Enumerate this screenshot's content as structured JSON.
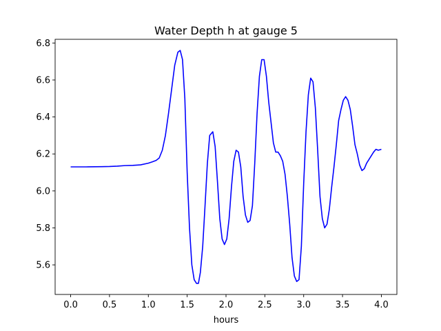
{
  "chart_data": {
    "type": "line",
    "title": "Water Depth h at gauge 5",
    "xlabel": "hours",
    "ylabel": "",
    "xlim": [
      -0.2,
      4.2
    ],
    "ylim": [
      5.44,
      6.82
    ],
    "xticks": [
      0.0,
      0.5,
      1.0,
      1.5,
      2.0,
      2.5,
      3.0,
      3.5,
      4.0
    ],
    "xtick_labels": [
      "0.0",
      "0.5",
      "1.0",
      "1.5",
      "2.0",
      "2.5",
      "3.0",
      "3.5",
      "4.0"
    ],
    "yticks": [
      5.6,
      5.8,
      6.0,
      6.2,
      6.4,
      6.6,
      6.8
    ],
    "ytick_labels": [
      "5.6",
      "5.8",
      "6.0",
      "6.2",
      "6.4",
      "6.6",
      "6.8"
    ],
    "grid": false,
    "series": [
      {
        "color": "#0000ff",
        "x": [
          0.0,
          0.2,
          0.4,
          0.5,
          0.6,
          0.7,
          0.8,
          0.9,
          1.0,
          1.05,
          1.1,
          1.14,
          1.18,
          1.22,
          1.26,
          1.3,
          1.34,
          1.38,
          1.41,
          1.44,
          1.47,
          1.5,
          1.53,
          1.56,
          1.59,
          1.62,
          1.645,
          1.67,
          1.7,
          1.73,
          1.76,
          1.79,
          1.83,
          1.86,
          1.89,
          1.92,
          1.95,
          1.98,
          2.01,
          2.04,
          2.07,
          2.1,
          2.13,
          2.16,
          2.19,
          2.22,
          2.25,
          2.28,
          2.31,
          2.34,
          2.37,
          2.4,
          2.43,
          2.46,
          2.49,
          2.52,
          2.55,
          2.58,
          2.61,
          2.64,
          2.67,
          2.7,
          2.73,
          2.76,
          2.79,
          2.82,
          2.85,
          2.88,
          2.91,
          2.94,
          2.97,
          3.0,
          3.03,
          3.06,
          3.09,
          3.12,
          3.15,
          3.18,
          3.21,
          3.24,
          3.27,
          3.3,
          3.33,
          3.36,
          3.39,
          3.42,
          3.45,
          3.48,
          3.51,
          3.54,
          3.57,
          3.6,
          3.63,
          3.66,
          3.69,
          3.72,
          3.75,
          3.78,
          3.81,
          3.84,
          3.87,
          3.9,
          3.93,
          3.96,
          4.0
        ],
        "y": [
          6.13,
          6.13,
          6.131,
          6.132,
          6.134,
          6.137,
          6.138,
          6.141,
          6.15,
          6.157,
          6.165,
          6.178,
          6.22,
          6.3,
          6.42,
          6.55,
          6.68,
          6.75,
          6.76,
          6.71,
          6.5,
          6.1,
          5.8,
          5.6,
          5.52,
          5.5,
          5.5,
          5.56,
          5.7,
          5.92,
          6.15,
          6.3,
          6.32,
          6.24,
          6.05,
          5.85,
          5.74,
          5.71,
          5.74,
          5.85,
          6.02,
          6.16,
          6.22,
          6.21,
          6.13,
          5.97,
          5.87,
          5.83,
          5.84,
          5.92,
          6.15,
          6.42,
          6.62,
          6.71,
          6.71,
          6.62,
          6.48,
          6.37,
          6.26,
          6.21,
          6.21,
          6.19,
          6.16,
          6.09,
          5.97,
          5.82,
          5.64,
          5.54,
          5.51,
          5.52,
          5.7,
          6.04,
          6.32,
          6.52,
          6.61,
          6.59,
          6.45,
          6.22,
          5.97,
          5.85,
          5.8,
          5.82,
          5.9,
          6.02,
          6.13,
          6.25,
          6.38,
          6.44,
          6.49,
          6.51,
          6.49,
          6.44,
          6.35,
          6.25,
          6.2,
          6.14,
          6.11,
          6.12,
          6.15,
          6.17,
          6.19,
          6.21,
          6.225,
          6.22,
          6.225
        ]
      }
    ]
  }
}
